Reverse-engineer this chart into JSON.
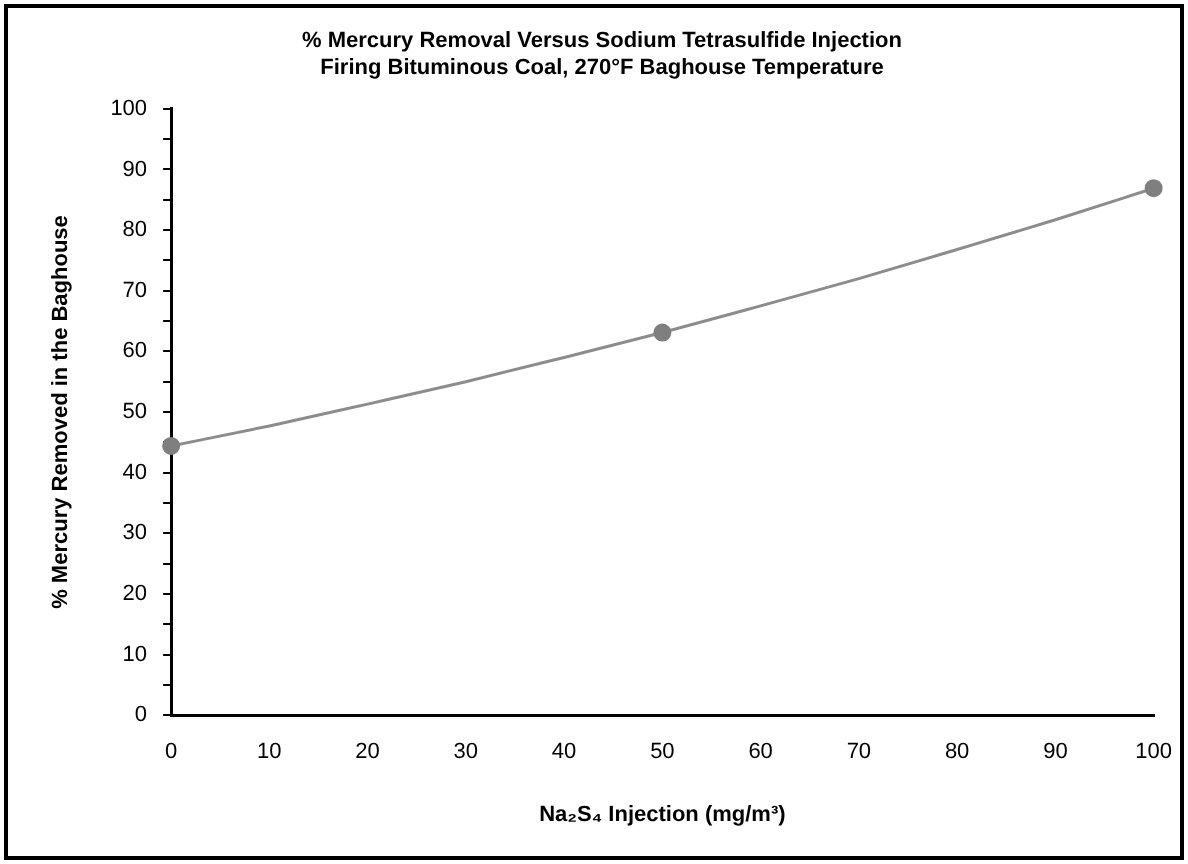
{
  "chart_data": {
    "type": "scatter",
    "title": "% Mercury Removal Versus Sodium Tetrasulfide Injection",
    "subtitle": "Firing Bituminous Coal, 270°F Baghouse Temperature",
    "xlabel": "Na₂S₄ Injection (mg/m³)",
    "ylabel": "% Mercury Removed in the Baghouse",
    "series": [
      {
        "type": "scatter",
        "color": "#7f7f7f",
        "marker": "circle",
        "x": [
          0,
          50,
          100
        ],
        "values": [
          44.4,
          63.1,
          86.9
        ]
      },
      {
        "type": "line",
        "color": "#8c8c8c",
        "marker": "none",
        "line_style": "solid",
        "x": [
          0,
          10,
          20,
          30,
          40,
          50,
          60,
          70,
          80,
          90,
          100
        ],
        "values": [
          44.4,
          47.7,
          51.3,
          55.0,
          59.0,
          63.1,
          67.5,
          72.0,
          76.8,
          81.7,
          86.9
        ]
      }
    ],
    "xlim": [
      0,
      100
    ],
    "xticks": [
      0,
      10,
      20,
      30,
      40,
      50,
      60,
      70,
      80,
      90,
      100
    ],
    "ylim": [
      0,
      100
    ],
    "yticks": [
      0,
      {
        "value": 5,
        "label": null
      },
      10,
      {
        "value": 15,
        "label": null
      },
      20,
      {
        "value": 25,
        "label": null
      },
      30,
      {
        "value": 35,
        "label": null
      },
      40,
      {
        "value": 45,
        "label": null
      },
      50,
      {
        "value": 55,
        "label": null
      },
      60,
      {
        "value": 65,
        "label": null
      },
      70,
      {
        "value": 75,
        "label": null
      },
      80,
      {
        "value": 85,
        "label": null
      },
      90,
      {
        "value": 95,
        "label": null
      },
      100
    ],
    "grid": false,
    "legend": false
  }
}
